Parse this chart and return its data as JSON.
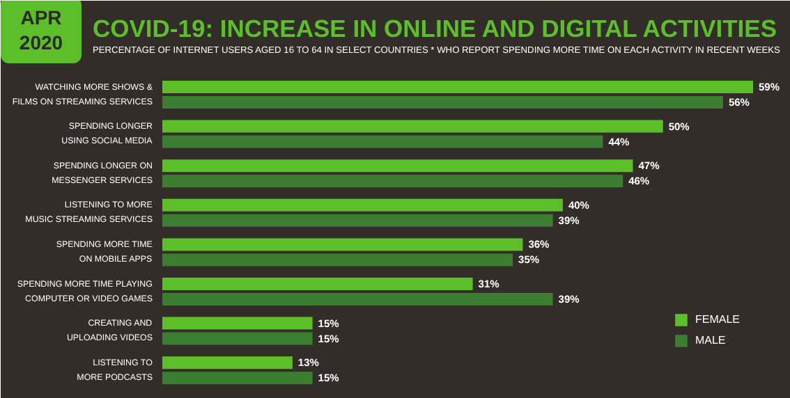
{
  "chart_data": {
    "type": "bar",
    "orientation": "horizontal",
    "title": "COVID-19: INCREASE IN ONLINE AND DIGITAL ACTIVITIES",
    "subtitle": "PERCENTAGE OF INTERNET USERS AGED 16 TO 64 IN SELECT COUNTRIES * WHO REPORT SPENDING MORE TIME ON EACH ACTIVITY IN RECENT WEEKS",
    "annotations": [
      "APR 2020"
    ],
    "categories": [
      "WATCHING MORE SHOWS &\nFILMS ON STREAMING SERVICES",
      "SPENDING LONGER\nUSING SOCIAL MEDIA",
      "SPENDING LONGER ON\nMESSENGER SERVICES",
      "LISTENING TO MORE\nMUSIC STREAMING SERVICES",
      "SPENDING MORE TIME\nON MOBILE APPS",
      "SPENDING MORE TIME PLAYING\nCOMPUTER OR VIDEO GAMES",
      "CREATING AND\nUPLOADING VIDEOS",
      "LISTENING TO\nMORE PODCASTS"
    ],
    "series": [
      {
        "name": "FEMALE",
        "color": "#5cbf2a",
        "values": [
          59,
          50,
          47,
          40,
          36,
          31,
          15,
          13
        ],
        "value_labels": [
          "59%",
          "50%",
          "47%",
          "40%",
          "36%",
          "31%",
          "15%",
          "13%"
        ]
      },
      {
        "name": "MALE",
        "color": "#3b7e31",
        "values": [
          56,
          44,
          46,
          39,
          35,
          39,
          15,
          15
        ],
        "value_labels": [
          "56%",
          "44%",
          "46%",
          "39%",
          "35%",
          "39%",
          "15%",
          "15%"
        ]
      }
    ],
    "legend": "bottom right",
    "grid": false
  }
}
